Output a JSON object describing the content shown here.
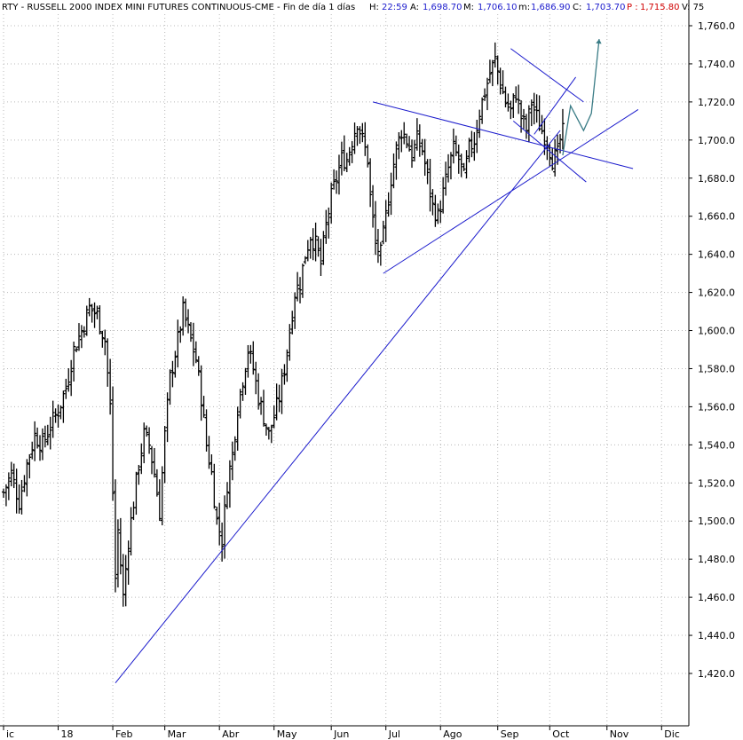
{
  "header": {
    "symbol": "RTY - RUSSELL 2000 INDEX MINI FUTURES CONTINUOUS-CME - Fin de día 1 días",
    "h_label": "H:",
    "h_value": "22:59",
    "a_label": "A:",
    "a_value": "1,698.70",
    "m_label": "M:",
    "m_value": "1,706.10",
    "mn_label": "m:",
    "mn_value": "1,686.90",
    "c_label": "C:",
    "c_value": "1,703.70",
    "p_label": "P :",
    "p_value": "1,715.80",
    "v_label": "V: 75"
  },
  "colors": {
    "background": "#ffffff",
    "grid": "#b8b8b8",
    "bars": "#000000",
    "trendlines": "#1a1acc",
    "projection": "#3a7c86",
    "header_value": "#1a1acc",
    "header_alert": "#d00000"
  },
  "chart_data": {
    "type": "ohlc",
    "ylim": [
      1410,
      1765
    ],
    "yticks": [
      1420,
      1440,
      1460,
      1480,
      1500,
      1520,
      1540,
      1560,
      1580,
      1600,
      1620,
      1640,
      1660,
      1680,
      1700,
      1720,
      1740,
      1760
    ],
    "ytick_labels": [
      "1,420.0",
      "1,440.0",
      "1,460.0",
      "1,480.0",
      "1,500.0",
      "1,520.0",
      "1,540.0",
      "1,560.0",
      "1,580.0",
      "1,600.0",
      "1,620.0",
      "1,640.0",
      "1,660.0",
      "1,680.0",
      "1,700.0",
      "1,720.0",
      "1,740.0",
      "1,760.0"
    ],
    "xlim": [
      0,
      290
    ],
    "month_labels": [
      {
        "label": "ic",
        "i": 0
      },
      {
        "label": "18",
        "i": 21
      },
      {
        "label": "Feb",
        "i": 42
      },
      {
        "label": "Mar",
        "i": 62
      },
      {
        "label": "Abr",
        "i": 83
      },
      {
        "label": "May",
        "i": 104
      },
      {
        "label": "Jun",
        "i": 126
      },
      {
        "label": "Jul",
        "i": 147
      },
      {
        "label": "Ago",
        "i": 168
      },
      {
        "label": "Sep",
        "i": 190
      },
      {
        "label": "Oct",
        "i": 210
      },
      {
        "label": "Nov",
        "i": 232
      },
      {
        "label": "Dic",
        "i": 253
      }
    ],
    "price_keypoints": [
      [
        0,
        1515
      ],
      [
        3,
        1525
      ],
      [
        6,
        1510
      ],
      [
        9,
        1530
      ],
      [
        12,
        1545
      ],
      [
        15,
        1540
      ],
      [
        18,
        1550
      ],
      [
        21,
        1558
      ],
      [
        24,
        1570
      ],
      [
        27,
        1590
      ],
      [
        30,
        1600
      ],
      [
        33,
        1612
      ],
      [
        36,
        1608
      ],
      [
        39,
        1595
      ],
      [
        41,
        1560
      ],
      [
        43,
        1470
      ],
      [
        44,
        1495
      ],
      [
        46,
        1460
      ],
      [
        48,
        1490
      ],
      [
        50,
        1510
      ],
      [
        52,
        1530
      ],
      [
        54,
        1545
      ],
      [
        56,
        1540
      ],
      [
        58,
        1525
      ],
      [
        60,
        1505
      ],
      [
        62,
        1545
      ],
      [
        64,
        1575
      ],
      [
        67,
        1595
      ],
      [
        69,
        1610
      ],
      [
        71,
        1600
      ],
      [
        74,
        1585
      ],
      [
        76,
        1565
      ],
      [
        78,
        1540
      ],
      [
        80,
        1525
      ],
      [
        82,
        1500
      ],
      [
        84,
        1490
      ],
      [
        86,
        1520
      ],
      [
        88,
        1535
      ],
      [
        90,
        1560
      ],
      [
        92,
        1575
      ],
      [
        94,
        1590
      ],
      [
        96,
        1580
      ],
      [
        98,
        1565
      ],
      [
        100,
        1555
      ],
      [
        102,
        1545
      ],
      [
        104,
        1555
      ],
      [
        106,
        1565
      ],
      [
        108,
        1580
      ],
      [
        110,
        1600
      ],
      [
        112,
        1620
      ],
      [
        114,
        1625
      ],
      [
        116,
        1640
      ],
      [
        118,
        1650
      ],
      [
        120,
        1645
      ],
      [
        122,
        1635
      ],
      [
        124,
        1655
      ],
      [
        126,
        1670
      ],
      [
        128,
        1680
      ],
      [
        130,
        1690
      ],
      [
        132,
        1690
      ],
      [
        134,
        1700
      ],
      [
        136,
        1710
      ],
      [
        138,
        1700
      ],
      [
        140,
        1690
      ],
      [
        141,
        1670
      ],
      [
        143,
        1645
      ],
      [
        145,
        1640
      ],
      [
        147,
        1660
      ],
      [
        149,
        1680
      ],
      [
        151,
        1695
      ],
      [
        153,
        1705
      ],
      [
        155,
        1700
      ],
      [
        157,
        1692
      ],
      [
        159,
        1700
      ],
      [
        161,
        1695
      ],
      [
        163,
        1680
      ],
      [
        165,
        1665
      ],
      [
        167,
        1660
      ],
      [
        169,
        1672
      ],
      [
        171,
        1685
      ],
      [
        173,
        1695
      ],
      [
        175,
        1690
      ],
      [
        177,
        1680
      ],
      [
        179,
        1695
      ],
      [
        181,
        1700
      ],
      [
        183,
        1715
      ],
      [
        185,
        1725
      ],
      [
        187,
        1735
      ],
      [
        189,
        1742
      ],
      [
        191,
        1730
      ],
      [
        193,
        1720
      ],
      [
        195,
        1715
      ],
      [
        197,
        1725
      ],
      [
        199,
        1712
      ],
      [
        201,
        1705
      ],
      [
        203,
        1720
      ],
      [
        205,
        1712
      ],
      [
        207,
        1705
      ],
      [
        209,
        1700
      ],
      [
        211,
        1690
      ],
      [
        213,
        1692
      ],
      [
        214,
        1700
      ],
      [
        215,
        1703.7
      ]
    ],
    "trendlines": [
      {
        "name": "uptrend-long",
        "points": [
          [
            43,
            1415
          ],
          [
            214,
            1705
          ]
        ]
      },
      {
        "name": "triangle-upper",
        "points": [
          [
            142,
            1720
          ],
          [
            242,
            1685
          ]
        ]
      },
      {
        "name": "triangle-lower",
        "points": [
          [
            146,
            1630
          ],
          [
            244,
            1716
          ]
        ]
      },
      {
        "name": "wedge-upper",
        "points": [
          [
            195,
            1748
          ],
          [
            223,
            1720
          ]
        ]
      },
      {
        "name": "wedge-lower",
        "points": [
          [
            196,
            1710
          ],
          [
            224,
            1678
          ]
        ]
      },
      {
        "name": "channel-up",
        "points": [
          [
            204,
            1703
          ],
          [
            220,
            1733
          ]
        ]
      }
    ],
    "projection": [
      [
        215,
        1692
      ],
      [
        218,
        1718
      ],
      [
        223,
        1705
      ],
      [
        226,
        1714
      ],
      [
        229,
        1753
      ]
    ]
  }
}
